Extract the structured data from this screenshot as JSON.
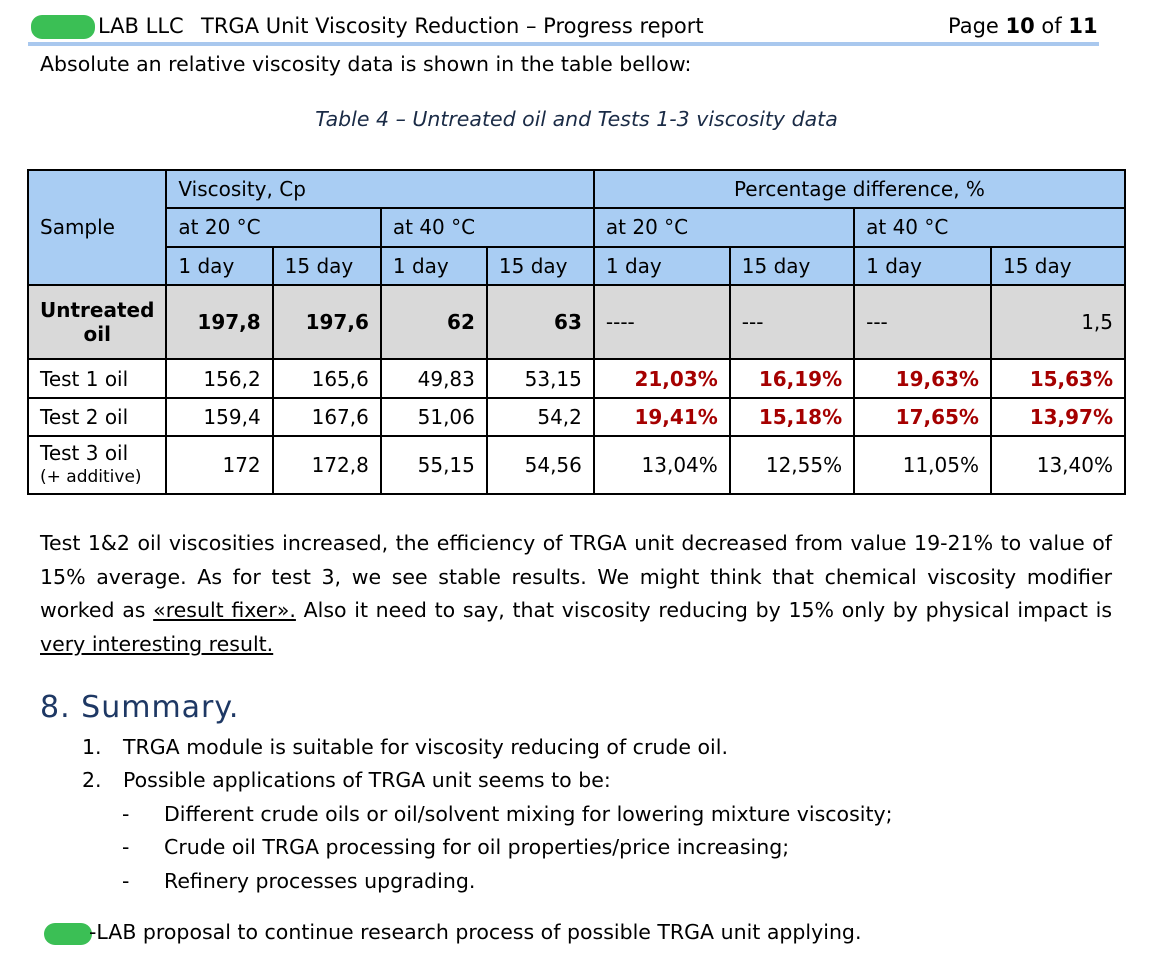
{
  "header": {
    "company": "LAB LLC",
    "title": "TRGA Unit Viscosity Reduction – Progress report",
    "page_prefix": "Page ",
    "page_current": "10",
    "page_of": " of ",
    "page_total": "11"
  },
  "intro": "Absolute an relative viscosity data is shown in the table bellow:",
  "table": {
    "caption": "Table  4 – Untreated oil and Tests 1-3 viscosity data",
    "header": {
      "sample": "Sample",
      "viscosity": "Viscosity, Cp",
      "percentage": "Percentage difference, %",
      "at20": "at 20 °C",
      "at40": "at 40 °C",
      "day1": "1 day",
      "day15": "15 day"
    },
    "rows": [
      {
        "sample": "Untreated oil",
        "v20_1": "197,8",
        "v20_15": "197,6",
        "v40_1": "62",
        "v40_15": "63",
        "p20_1": "----",
        "p20_15": "---",
        "p40_1": "---",
        "p40_15": "1,5"
      },
      {
        "sample": "Test 1 oil",
        "v20_1": "156,2",
        "v20_15": "165,6",
        "v40_1": "49,83",
        "v40_15": "53,15",
        "p20_1": "21,03%",
        "p20_15": "16,19%",
        "p40_1": "19,63%",
        "p40_15": "15,63%"
      },
      {
        "sample": "Test 2 oil",
        "v20_1": "159,4",
        "v20_15": "167,6",
        "v40_1": "51,06",
        "v40_15": "54,2",
        "p20_1": "19,41%",
        "p20_15": "15,18%",
        "p40_1": "17,65%",
        "p40_15": "13,97%"
      },
      {
        "sample": "Test 3 oil",
        "sample_note": "(+ additive)",
        "v20_1": "172",
        "v20_15": "172,8",
        "v40_1": "55,15",
        "v40_15": "54,56",
        "p20_1": "13,04%",
        "p20_15": "12,55%",
        "p40_1": "11,05%",
        "p40_15": "13,40%"
      }
    ]
  },
  "paragraph": {
    "text1": "Test 1&2 oil viscosities increased, the efficiency of TRGA unit decreased from value 19-21% to value of 15% average. As for test 3, we see stable results. We might think that chemical viscosity modifier worked as ",
    "link1": "«result fixer».",
    "text2": " Also it need to say, that viscosity reducing by 15% only by physical impact is ",
    "link2": "very interesting result."
  },
  "summary": {
    "heading": "8. Summary.",
    "items": [
      {
        "num": "1.",
        "text": "TRGA module is suitable for viscosity reducing of crude oil."
      },
      {
        "num": "2.",
        "text": "Possible applications of TRGA unit seems to be:"
      }
    ],
    "subitems": [
      {
        "dash": "-",
        "text": "Different crude oils or oil/solvent mixing for lowering mixture viscosity;"
      },
      {
        "dash": "-",
        "text": "Crude oil TRGA processing for oil properties/price increasing;"
      },
      {
        "dash": "-",
        "text": "Refinery processes upgrading."
      }
    ],
    "proposal": "-LAB proposal to continue research process of possible TRGA unit applying."
  }
}
